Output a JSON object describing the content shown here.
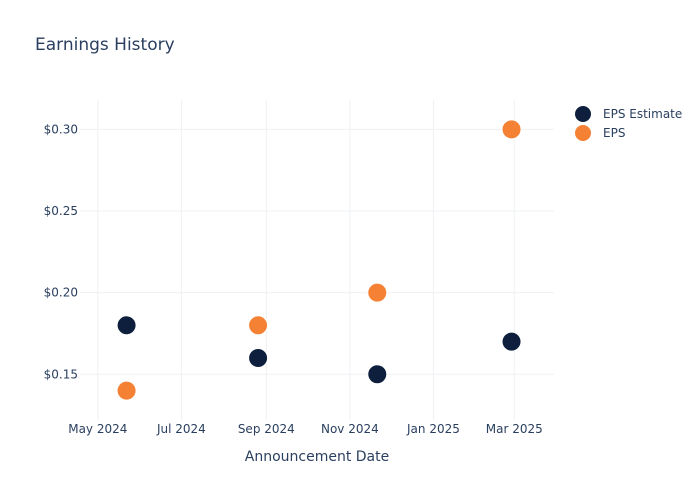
{
  "chart_data": {
    "type": "scatter",
    "title": "Earnings History",
    "xlabel": "Announcement Date",
    "ylabel": "",
    "x_axis_type": "date",
    "xlim": [
      "2024-04-18",
      "2025-03-30"
    ],
    "ylim": [
      0.122,
      0.318
    ],
    "x_ticks": [
      {
        "value": "2024-05-01",
        "label": "May 2024"
      },
      {
        "value": "2024-07-01",
        "label": "Jul 2024"
      },
      {
        "value": "2024-09-01",
        "label": "Sep 2024"
      },
      {
        "value": "2024-11-01",
        "label": "Nov 2024"
      },
      {
        "value": "2025-01-01",
        "label": "Jan 2025"
      },
      {
        "value": "2025-03-01",
        "label": "Mar 2025"
      }
    ],
    "y_ticks": [
      {
        "value": 0.15,
        "label": "$0.15"
      },
      {
        "value": 0.2,
        "label": "$0.20"
      },
      {
        "value": 0.25,
        "label": "$0.25"
      },
      {
        "value": 0.3,
        "label": "$0.30"
      }
    ],
    "grid": true,
    "legend_position": "top-right",
    "series": [
      {
        "name": "EPS Estimate",
        "color": "#0d1f3c",
        "points": [
          {
            "x": "2024-05-22",
            "y": 0.18
          },
          {
            "x": "2024-08-26",
            "y": 0.16
          },
          {
            "x": "2024-11-21",
            "y": 0.15
          },
          {
            "x": "2025-02-27",
            "y": 0.17
          }
        ]
      },
      {
        "name": "EPS",
        "color": "#f58134",
        "points": [
          {
            "x": "2024-05-22",
            "y": 0.14
          },
          {
            "x": "2024-08-26",
            "y": 0.18
          },
          {
            "x": "2024-11-21",
            "y": 0.2
          },
          {
            "x": "2025-02-27",
            "y": 0.3
          }
        ]
      }
    ]
  }
}
